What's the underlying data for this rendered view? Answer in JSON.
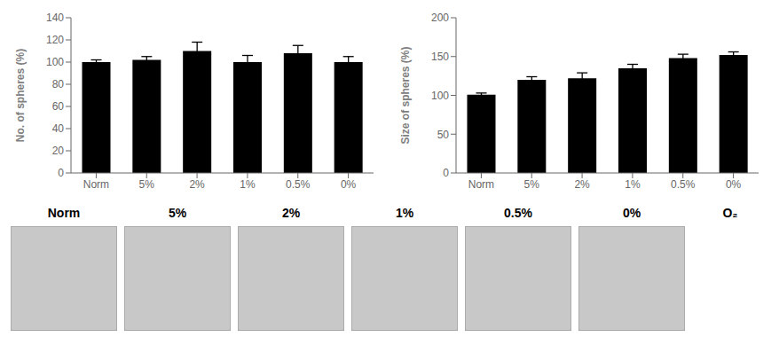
{
  "chart_data": [
    {
      "type": "bar",
      "categories": [
        "Norm",
        "5%",
        "2%",
        "1%",
        "0.5%",
        "0%"
      ],
      "values": [
        100,
        102,
        110,
        100,
        108,
        100
      ],
      "errors": [
        2,
        3,
        8,
        6,
        7,
        5
      ],
      "ylabel": "No. of spheres  (%)",
      "ylim": [
        0,
        140
      ],
      "yticks": [
        0,
        20,
        40,
        60,
        80,
        100,
        120,
        140
      ],
      "color": "#000000"
    },
    {
      "type": "bar",
      "categories": [
        "Norm",
        "5%",
        "2%",
        "1%",
        "0.5%",
        "0%"
      ],
      "values": [
        101,
        120,
        122,
        135,
        148,
        152
      ],
      "errors": [
        2,
        4,
        7,
        5,
        5,
        4
      ],
      "ylabel": "Size of spheres  (%)",
      "ylim": [
        0,
        200
      ],
      "yticks": [
        0,
        50,
        100,
        150,
        200
      ],
      "color": "#000000"
    }
  ],
  "annotations": [
    "Norm",
    "5%",
    "2%",
    "1%",
    "0.5%",
    "0%",
    "O₂"
  ]
}
